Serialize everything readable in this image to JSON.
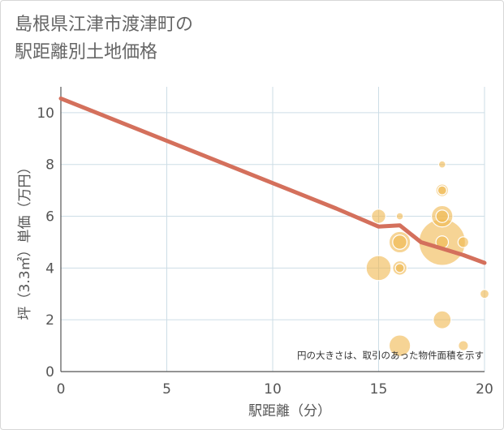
{
  "title_line1": "島根県江津市渡津町の",
  "title_line2": "駅距離別土地価格",
  "colors": {
    "trend_line": "#d4705c",
    "bubble_fill": "#f0b84e",
    "grid": "#cddde6",
    "axis_text": "#555555"
  },
  "chart_data": {
    "type": "scatter",
    "title": "島根県江津市渡津町の 駅距離別土地価格",
    "xlabel": "駅距離（分）",
    "ylabel": "坪（3.3㎡）単価（万円）",
    "xlim": [
      0,
      20
    ],
    "ylim": [
      0,
      11
    ],
    "xticks": [
      0,
      5,
      10,
      15,
      20
    ],
    "yticks": [
      0,
      2,
      4,
      6,
      8,
      10
    ],
    "grid": true,
    "note": "円の大きさは、取引のあった物件面積を示す",
    "trend_line": {
      "x": [
        0,
        13,
        15,
        16,
        17,
        18,
        19,
        20
      ],
      "y": [
        10.55,
        6.3,
        5.6,
        5.65,
        5.0,
        4.75,
        4.5,
        4.2
      ]
    },
    "points": [
      {
        "x": 15,
        "y": 6.0,
        "size": 4
      },
      {
        "x": 15,
        "y": 4.0,
        "size": 7
      },
      {
        "x": 16,
        "y": 6.0,
        "size": 2
      },
      {
        "x": 16,
        "y": 5.0,
        "size": 6
      },
      {
        "x": 16,
        "y": 5.0,
        "size": 4
      },
      {
        "x": 16,
        "y": 4.0,
        "size": 4
      },
      {
        "x": 16,
        "y": 4.0,
        "size": 2.5
      },
      {
        "x": 16,
        "y": 1.0,
        "size": 6
      },
      {
        "x": 18,
        "y": 8.0,
        "size": 2
      },
      {
        "x": 18,
        "y": 7.0,
        "size": 3.5
      },
      {
        "x": 18,
        "y": 7.0,
        "size": 2.5
      },
      {
        "x": 18,
        "y": 6.0,
        "size": 6
      },
      {
        "x": 18,
        "y": 6.0,
        "size": 3.5
      },
      {
        "x": 18,
        "y": 5.0,
        "size": 13
      },
      {
        "x": 18,
        "y": 5.0,
        "size": 3.5
      },
      {
        "x": 18,
        "y": 2.0,
        "size": 5
      },
      {
        "x": 19,
        "y": 5.0,
        "size": 3
      },
      {
        "x": 19,
        "y": 1.0,
        "size": 2.8
      },
      {
        "x": 20,
        "y": 3.0,
        "size": 2.5
      }
    ]
  }
}
